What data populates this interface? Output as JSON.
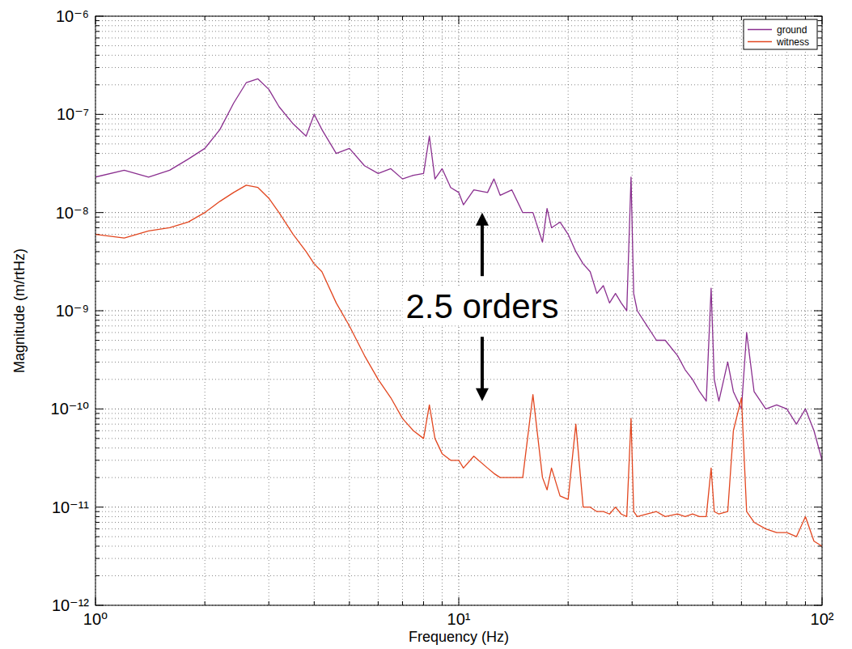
{
  "chart_data": {
    "type": "line",
    "x_label": "Frequency (Hz)",
    "y_label": "Magnitude (m/rtHz)",
    "log": true,
    "grid": true,
    "legend": "top-right",
    "xlim": [
      1,
      100
    ],
    "ylim": [
      1e-12,
      1e-06
    ],
    "xticks": [
      {
        "value": 1,
        "label": "10⁰"
      },
      {
        "value": 10,
        "label": "10¹"
      },
      {
        "value": 100,
        "label": "10²"
      }
    ],
    "yticks": [
      {
        "value": 1e-12,
        "label": "10⁻¹²"
      },
      {
        "value": 1e-11,
        "label": "10⁻¹¹"
      },
      {
        "value": 1e-10,
        "label": "10⁻¹⁰"
      },
      {
        "value": 1e-09,
        "label": "10⁻⁹"
      },
      {
        "value": 1e-08,
        "label": "10⁻⁸"
      },
      {
        "value": 1e-07,
        "label": "10⁻⁷"
      },
      {
        "value": 1e-06,
        "label": "10⁻⁶"
      }
    ],
    "x": [
      1,
      1.2,
      1.4,
      1.6,
      1.8,
      2,
      2.2,
      2.4,
      2.6,
      2.8,
      3,
      3.2,
      3.5,
      3.8,
      4,
      4.2,
      4.6,
      5,
      5.5,
      6,
      6.5,
      7,
      7.5,
      8,
      8.3,
      8.6,
      9,
      9.5,
      10,
      10.3,
      11,
      12,
      12.5,
      13,
      14,
      15,
      16,
      17,
      17.5,
      18,
      19,
      20,
      21,
      22,
      23,
      24,
      25,
      26,
      27,
      28,
      29,
      29.8,
      30.3,
      31,
      33,
      35,
      37,
      40,
      42,
      44,
      46,
      48,
      49.5,
      50.5,
      52,
      55,
      57,
      60,
      62,
      65,
      70,
      75,
      80,
      85,
      90,
      95,
      100
    ],
    "series": [
      {
        "name": "ground",
        "color": "#8a2f8f",
        "values": [
          2.3e-08,
          2.7e-08,
          2.3e-08,
          2.7e-08,
          3.5e-08,
          4.5e-08,
          7e-08,
          1.3e-07,
          2.1e-07,
          2.3e-07,
          1.8e-07,
          1.2e-07,
          8e-08,
          6e-08,
          1e-07,
          7e-08,
          4e-08,
          4.5e-08,
          3e-08,
          2.5e-08,
          2.8e-08,
          2.2e-08,
          2.4e-08,
          2.5e-08,
          6e-08,
          2.2e-08,
          2.8e-08,
          1.8e-08,
          1.6e-08,
          1.2e-08,
          1.7e-08,
          1.6e-08,
          2.2e-08,
          1.5e-08,
          1.7e-08,
          1e-08,
          1e-08,
          5e-09,
          1.1e-08,
          7e-09,
          8e-09,
          6e-09,
          4e-09,
          3e-09,
          2.5e-09,
          1.5e-09,
          1.8e-09,
          1.2e-09,
          1.5e-09,
          1.2e-09,
          1e-09,
          2.3e-08,
          1.5e-09,
          1e-09,
          7e-10,
          5e-10,
          5e-10,
          3.5e-10,
          2.5e-10,
          2e-10,
          1.5e-10,
          1.2e-10,
          1.7e-09,
          2e-10,
          1.2e-10,
          3e-10,
          1.5e-10,
          1e-10,
          6e-10,
          1.5e-10,
          1e-10,
          1.1e-10,
          1e-10,
          7e-11,
          1e-10,
          6e-11,
          3e-11
        ]
      },
      {
        "name": "witness",
        "color": "#e2461f",
        "values": [
          6e-09,
          5.5e-09,
          6.5e-09,
          7e-09,
          8e-09,
          1e-08,
          1.3e-08,
          1.6e-08,
          1.9e-08,
          1.8e-08,
          1.4e-08,
          1e-08,
          6e-09,
          4e-09,
          3e-09,
          2.5e-09,
          1.2e-09,
          7e-10,
          3.5e-10,
          2e-10,
          1.3e-10,
          8e-11,
          6e-11,
          5e-11,
          1.1e-10,
          5e-11,
          3.5e-11,
          3e-11,
          3e-11,
          2.5e-11,
          3.3e-11,
          2.5e-11,
          2.2e-11,
          2e-11,
          2e-11,
          2e-11,
          1.4e-10,
          2e-11,
          1.5e-11,
          2.5e-11,
          1.3e-11,
          1.2e-11,
          7e-11,
          1e-11,
          1e-11,
          9e-12,
          9e-12,
          8.5e-12,
          1e-11,
          8.5e-12,
          8e-12,
          8e-11,
          9e-12,
          8e-12,
          8.5e-12,
          9e-12,
          8e-12,
          8.5e-12,
          8e-12,
          8.5e-12,
          8e-12,
          8e-12,
          2.5e-11,
          9e-12,
          8.5e-12,
          9e-12,
          6e-11,
          1.3e-10,
          9e-12,
          7e-12,
          6e-12,
          5.5e-12,
          5.5e-12,
          5e-12,
          8e-12,
          4.5e-12,
          4e-12
        ]
      }
    ],
    "annotations": [
      {
        "text": "2.5 orders",
        "x": 11.6,
        "y_from": 1e-08,
        "y_to": 1.2e-10
      }
    ]
  }
}
